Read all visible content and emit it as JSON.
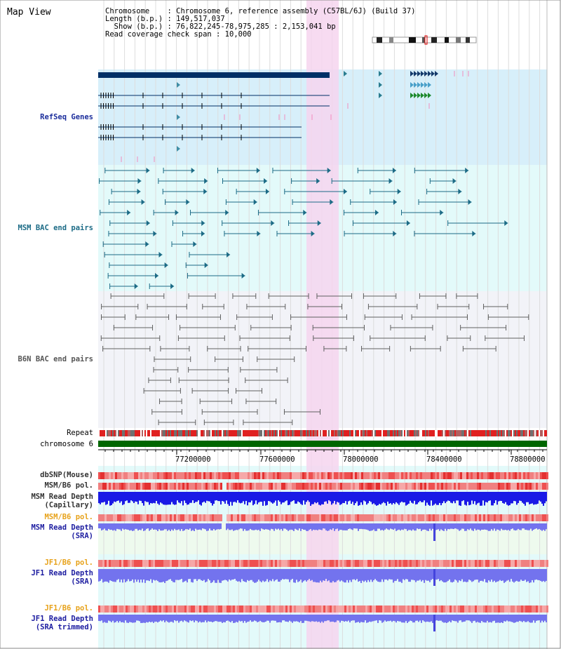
{
  "title": "Map View",
  "info": {
    "line1": "Chromosome    : Chromosome 6, reference assembly (C57BL/6J) (Build 37)",
    "line2": "Length (b.p.) : 149,517,037",
    "line3": "  Show (b.p.) : 76,822,245-78,975,285 : 2,153,041 bp",
    "line4": "Read coverage check span : 10,000"
  },
  "colors": {
    "refseq_bg": "#d7effa",
    "msm_bg": "#e3fafa",
    "b6n_bg": "#f2f3f8",
    "highlight": "#f6d5ef",
    "refseq_gene": "#002f66",
    "msm_feature": "#1c6b86",
    "b6n_feature": "#606060",
    "chrom_bar": "#006600",
    "snp": "#e23030",
    "depth_blue": "#1a1ae6",
    "sra_blue": "#7373ee"
  },
  "tracks": {
    "refseq": "RefSeq Genes",
    "msm_bac": "MSM BAC end pairs",
    "b6n_bac": "B6N BAC end pairs",
    "repeat": "Repeat",
    "chromosome": "chromosome 6",
    "dbsnp": "dbSNP(Mouse)",
    "msm_b6_pol": "MSM/B6 pol.",
    "msm_depth_cap_1": "MSM Read Depth",
    "msm_depth_cap_2": "(Capillary)",
    "msm_b6_pol_2": "MSM/B6 pol.",
    "msm_depth_sra_1": "MSM Read Depth",
    "msm_depth_sra_2": "(SRA)",
    "jf1_b6_pol": "JF1/B6 pol.",
    "jf1_depth_sra_1": "JF1 Read Depth",
    "jf1_depth_sra_2": "(SRA)",
    "jf1_b6_pol_2": "JF1/B6 pol.",
    "jf1_depth_trim_1": "JF1 Read Depth",
    "jf1_depth_trim_2": "(SRA trimmed)"
  },
  "axis": {
    "ticks": [
      "77200000",
      "77600000",
      "78000000",
      "78400000",
      "78800000"
    ]
  }
}
